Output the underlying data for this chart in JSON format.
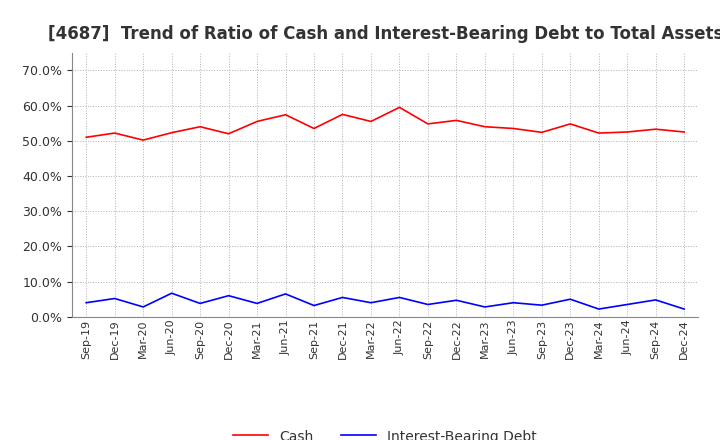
{
  "title": "[4687]  Trend of Ratio of Cash and Interest-Bearing Debt to Total Assets",
  "x_labels": [
    "Sep-19",
    "Dec-19",
    "Mar-20",
    "Jun-20",
    "Sep-20",
    "Dec-20",
    "Mar-21",
    "Jun-21",
    "Sep-21",
    "Dec-21",
    "Mar-22",
    "Jun-22",
    "Sep-22",
    "Dec-22",
    "Mar-23",
    "Jun-23",
    "Sep-23",
    "Dec-23",
    "Mar-24",
    "Jun-24",
    "Sep-24",
    "Dec-24"
  ],
  "cash": [
    0.51,
    0.522,
    0.502,
    0.523,
    0.54,
    0.52,
    0.555,
    0.574,
    0.535,
    0.575,
    0.555,
    0.595,
    0.548,
    0.558,
    0.54,
    0.535,
    0.524,
    0.548,
    0.522,
    0.525,
    0.533,
    0.525
  ],
  "debt": [
    0.04,
    0.052,
    0.028,
    0.067,
    0.038,
    0.06,
    0.038,
    0.065,
    0.032,
    0.055,
    0.04,
    0.055,
    0.035,
    0.047,
    0.028,
    0.04,
    0.033,
    0.05,
    0.022,
    0.035,
    0.048,
    0.022
  ],
  "cash_color": "#ff0000",
  "debt_color": "#0000ff",
  "ylim": [
    0.0,
    0.75
  ],
  "yticks": [
    0.0,
    0.1,
    0.2,
    0.3,
    0.4,
    0.5,
    0.6,
    0.7
  ],
  "background_color": "#ffffff",
  "grid_color": "#b0b0b0",
  "title_fontsize": 12,
  "legend_labels": [
    "Cash",
    "Interest-Bearing Debt"
  ]
}
